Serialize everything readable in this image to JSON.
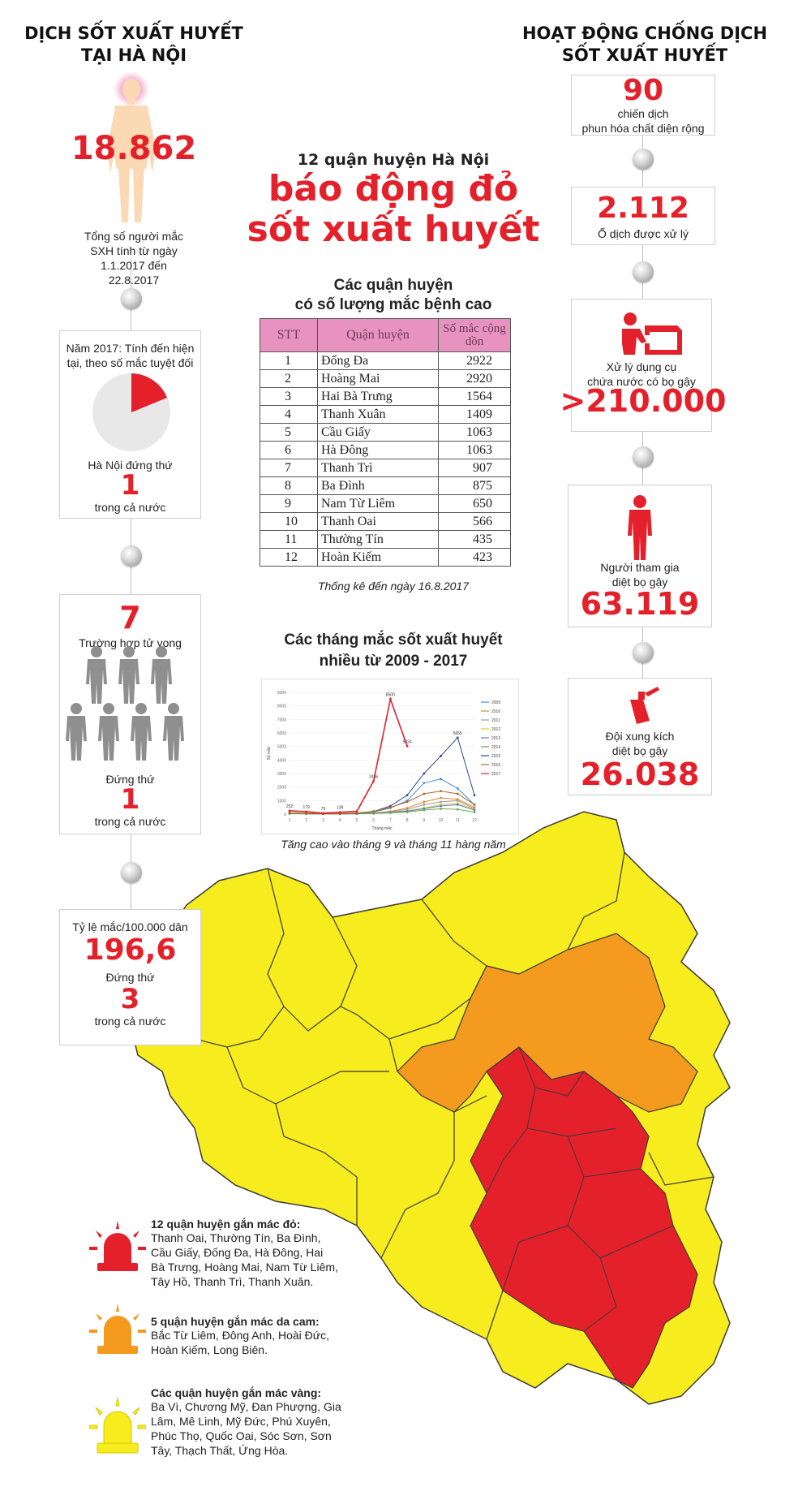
{
  "left": {
    "title_line1": "DỊCH SỐT XUẤT HUYẾT",
    "title_line2": "TẠI HÀ NỘI",
    "total_cases": "18.862",
    "total_caption": [
      "Tổng số người mắc",
      "SXH tính từ ngày",
      "1.1.2017 đến",
      "22.8.2017"
    ],
    "rank_box": {
      "caption1": "Năm 2017: Tính đến hiện",
      "caption2": "tại, theo số mắc tuyệt đối",
      "label": "Hà Nội đứng thứ",
      "rank": "1",
      "suffix": "trong cả nước"
    },
    "death_box": {
      "count": "7",
      "label": "Trường hợp tử vong",
      "rank_label": "Đứng thứ",
      "rank": "1",
      "suffix": "trong cả nước"
    },
    "rate_box": {
      "label": "Tỷ lệ mắc/100.000 dân",
      "rate": "196,6",
      "rank_label": "Đứng thứ",
      "rank": "3",
      "suffix": "trong cả nước"
    }
  },
  "right": {
    "title_line1": "HOẠT ĐỘNG CHỐNG DỊCH",
    "title_line2": "SỐT XUẤT HUYẾT",
    "campaigns": {
      "value": "90",
      "line1": "chiến dịch",
      "line2": "phun hóa chất diện rộng"
    },
    "outbreaks": {
      "value": "2.112",
      "line1": "Ổ dịch được xử lý"
    },
    "containers": {
      "line1": "Xử lý dụng cụ",
      "line2": "chứa nước có bọ gậy",
      "value": ">210.000"
    },
    "people": {
      "line1": "Người tham gia",
      "line2": "diệt bọ gậy",
      "value": "63.119"
    },
    "teams": {
      "line1": "Đội xung kích",
      "line2": "diệt bọ gậy",
      "value": "26.038"
    }
  },
  "center": {
    "subtitle": "12 quận huyện Hà Nội",
    "headline1": "báo động đỏ",
    "headline2": "sốt xuất huyết",
    "table_title1": "Các quận huyện",
    "table_title2": "có số lượng mắc bệnh cao",
    "table_headers": [
      "STT",
      "Quận huyện",
      "Số mắc cộng dồn"
    ],
    "table_rows": [
      [
        "1",
        "Đống Đa",
        "2922"
      ],
      [
        "2",
        "Hoàng Mai",
        "2920"
      ],
      [
        "3",
        "Hai Bà Trưng",
        "1564"
      ],
      [
        "4",
        "Thanh Xuân",
        "1409"
      ],
      [
        "5",
        "Cầu Giấy",
        "1063"
      ],
      [
        "6",
        "Hà Đông",
        "1063"
      ],
      [
        "7",
        "Thanh Trì",
        "907"
      ],
      [
        "8",
        "Ba Đình",
        "875"
      ],
      [
        "9",
        "Nam Từ Liêm",
        "650"
      ],
      [
        "10",
        "Thanh Oai",
        "566"
      ],
      [
        "11",
        "Thường Tín",
        "435"
      ],
      [
        "12",
        "Hoàn Kiếm",
        "423"
      ]
    ],
    "table_note": "Thống kê đến ngày 16.8.2017",
    "chart_title1": "Các tháng mắc sốt xuất huyết",
    "chart_title2": "nhiều từ 2009 - 2017",
    "chart_note": "Tăng cao vào tháng 9 và tháng 11 hàng năm"
  },
  "chart_data": {
    "type": "line",
    "xlabel": "Tháng mắc",
    "ylabel": "Số mắc",
    "x": [
      1,
      2,
      3,
      4,
      5,
      6,
      7,
      8,
      9,
      10,
      11,
      12
    ],
    "ylim": [
      0,
      9000
    ],
    "yticks": [
      0,
      1000,
      2000,
      3000,
      4000,
      5000,
      6000,
      7000,
      8000,
      9000
    ],
    "series": [
      {
        "name": "2009",
        "color": "#4a90d9",
        "values": [
          80,
          40,
          30,
          30,
          60,
          150,
          450,
          1000,
          2300,
          2600,
          1900,
          700
        ]
      },
      {
        "name": "2010",
        "color": "#e08a2e",
        "values": [
          60,
          30,
          20,
          20,
          40,
          90,
          200,
          450,
          900,
          1200,
          1100,
          500
        ]
      },
      {
        "name": "2011",
        "color": "#9b9b9b",
        "values": [
          50,
          25,
          20,
          20,
          30,
          70,
          160,
          350,
          700,
          900,
          1000,
          400
        ]
      },
      {
        "name": "2012",
        "color": "#e6c229",
        "values": [
          40,
          20,
          15,
          15,
          25,
          60,
          130,
          250,
          450,
          700,
          800,
          350
        ]
      },
      {
        "name": "2013",
        "color": "#5b7fc7",
        "values": [
          40,
          20,
          15,
          15,
          25,
          60,
          130,
          220,
          400,
          600,
          700,
          300
        ]
      },
      {
        "name": "2014",
        "color": "#6aa84f",
        "values": [
          30,
          15,
          10,
          10,
          20,
          40,
          90,
          150,
          300,
          400,
          350,
          150
        ]
      },
      {
        "name": "2015",
        "color": "#2e4a8c",
        "values": [
          100,
          50,
          30,
          30,
          60,
          200,
          600,
          1400,
          3000,
          4300,
          5655,
          1400
        ]
      },
      {
        "name": "2016",
        "color": "#b5652b",
        "values": [
          100,
          60,
          40,
          40,
          80,
          200,
          500,
          900,
          1500,
          1700,
          1500,
          700
        ]
      },
      {
        "name": "2017",
        "color": "#e4202a",
        "values": [
          252,
          179,
          75,
          139,
          200,
          2436,
          8500,
          5024,
          null,
          null,
          null,
          null
        ]
      }
    ],
    "labels": [
      {
        "x": 1,
        "text": "252"
      },
      {
        "x": 2,
        "text": "179"
      },
      {
        "x": 3,
        "text": "75"
      },
      {
        "x": 4,
        "text": "139"
      },
      {
        "x": 6,
        "text": "2436"
      },
      {
        "x": 7,
        "text": "8500"
      },
      {
        "x": 8,
        "text": "5024"
      },
      {
        "x": 11,
        "text": "5655"
      }
    ]
  },
  "legend": {
    "red_title": "12 quận huyện gắn mác đỏ:",
    "red_text": [
      "Thanh Oai, Thường Tín, Ba Đình,",
      "Cầu Giấy, Đống Đa, Hà Đông, Hai",
      "Bà Trưng, Hoàng Mai, Nam Từ Liêm,",
      "Tây Hồ, Thanh Trì, Thanh Xuân."
    ],
    "orange_title": "5 quận huyện gắn mác da cam:",
    "orange_text": [
      "Bắc Từ Liêm, Đông Anh, Hoài Đức,",
      "Hoàn Kiếm, Long Biên."
    ],
    "yellow_title": "Các quận huyện gắn mác vàng:",
    "yellow_text": [
      "Ba Vì, Chương Mỹ, Đan Phượng, Gia",
      "Lâm, Mê Linh, Mỹ Đức, Phú Xuyên,",
      "Phúc Thọ, Quốc Oai, Sóc Sơn, Sơn",
      "Tây, Thạch Thất, Ứng Hòa."
    ]
  },
  "colors": {
    "red": "#e4202a",
    "orange": "#f39a1f",
    "yellow": "#f7ec1e",
    "pink": "#e893bf"
  }
}
